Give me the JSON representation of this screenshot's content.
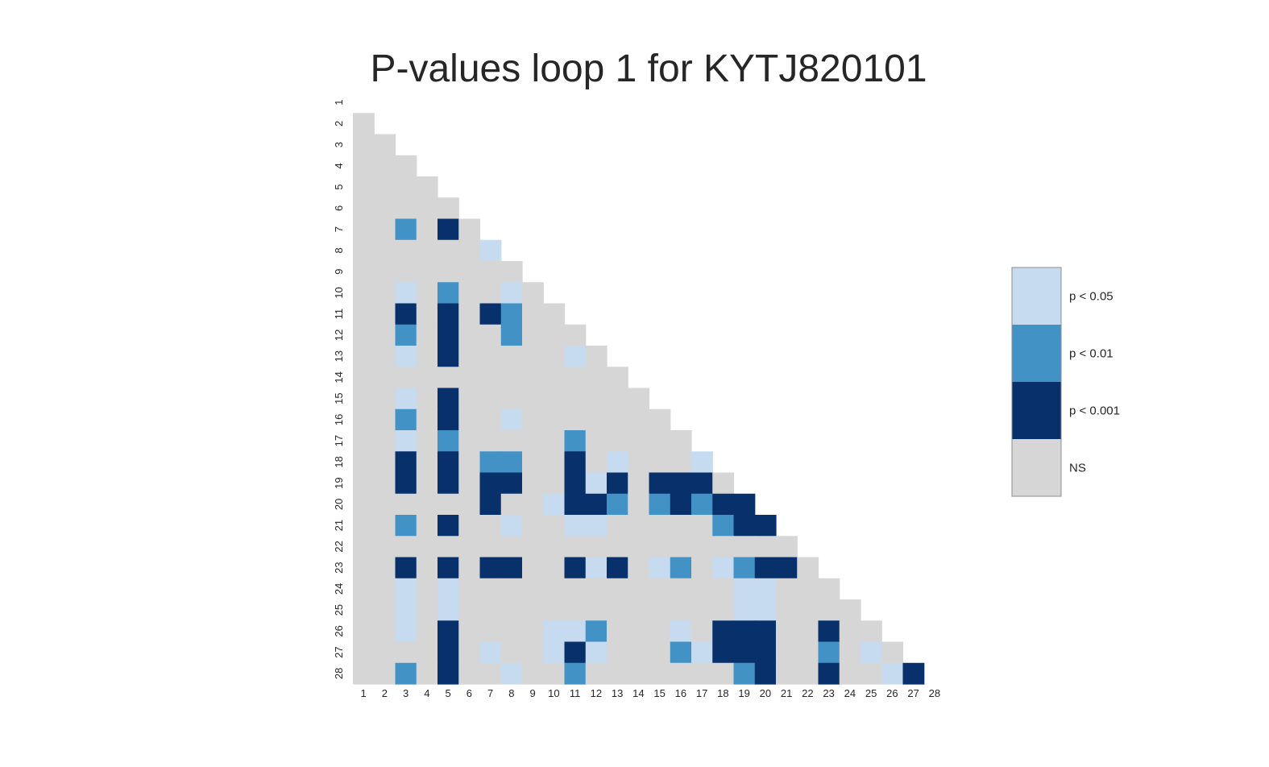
{
  "chart_data": {
    "type": "heatmap",
    "title": "P-values loop 1 for KYTJ820101",
    "xlabel": "",
    "ylabel": "",
    "x_tick_labels": [
      "1",
      "2",
      "3",
      "4",
      "5",
      "6",
      "7",
      "8",
      "9",
      "10",
      "11",
      "12",
      "13",
      "14",
      "15",
      "16",
      "17",
      "18",
      "19",
      "20",
      "21",
      "22",
      "23",
      "24",
      "25",
      "26",
      "27",
      "28"
    ],
    "y_tick_labels": [
      "1",
      "2",
      "3",
      "4",
      "5",
      "6",
      "7",
      "8",
      "9",
      "10",
      "11",
      "12",
      "13",
      "14",
      "15",
      "16",
      "17",
      "18",
      "19",
      "20",
      "21",
      "22",
      "23",
      "24",
      "25",
      "26",
      "27",
      "28"
    ],
    "mask": "upper triangle including diagonal",
    "levels": [
      {
        "code": 1,
        "label": "p < 0.05",
        "color": "#c6dbef"
      },
      {
        "code": 2,
        "label": "p < 0.01",
        "color": "#4292c6"
      },
      {
        "code": 3,
        "label": "p < 0.001",
        "color": "#08306b"
      },
      {
        "code": 0,
        "label": "NS",
        "color": "#d6d6d6"
      }
    ],
    "legend_position": "right",
    "grid": false,
    "significant_cells": [
      {
        "row": 7,
        "col": 3,
        "level": 2
      },
      {
        "row": 7,
        "col": 5,
        "level": 3
      },
      {
        "row": 8,
        "col": 7,
        "level": 1
      },
      {
        "row": 10,
        "col": 3,
        "level": 1
      },
      {
        "row": 10,
        "col": 5,
        "level": 2
      },
      {
        "row": 10,
        "col": 8,
        "level": 1
      },
      {
        "row": 11,
        "col": 3,
        "level": 3
      },
      {
        "row": 11,
        "col": 5,
        "level": 3
      },
      {
        "row": 11,
        "col": 7,
        "level": 3
      },
      {
        "row": 11,
        "col": 8,
        "level": 2
      },
      {
        "row": 12,
        "col": 3,
        "level": 2
      },
      {
        "row": 12,
        "col": 5,
        "level": 3
      },
      {
        "row": 12,
        "col": 8,
        "level": 2
      },
      {
        "row": 13,
        "col": 3,
        "level": 1
      },
      {
        "row": 13,
        "col": 5,
        "level": 3
      },
      {
        "row": 13,
        "col": 11,
        "level": 1
      },
      {
        "row": 15,
        "col": 3,
        "level": 1
      },
      {
        "row": 15,
        "col": 5,
        "level": 3
      },
      {
        "row": 16,
        "col": 3,
        "level": 2
      },
      {
        "row": 16,
        "col": 5,
        "level": 3
      },
      {
        "row": 16,
        "col": 8,
        "level": 1
      },
      {
        "row": 17,
        "col": 3,
        "level": 1
      },
      {
        "row": 17,
        "col": 5,
        "level": 2
      },
      {
        "row": 17,
        "col": 11,
        "level": 2
      },
      {
        "row": 18,
        "col": 3,
        "level": 3
      },
      {
        "row": 18,
        "col": 5,
        "level": 3
      },
      {
        "row": 18,
        "col": 7,
        "level": 2
      },
      {
        "row": 18,
        "col": 8,
        "level": 2
      },
      {
        "row": 18,
        "col": 11,
        "level": 3
      },
      {
        "row": 18,
        "col": 13,
        "level": 1
      },
      {
        "row": 18,
        "col": 17,
        "level": 1
      },
      {
        "row": 19,
        "col": 3,
        "level": 3
      },
      {
        "row": 19,
        "col": 5,
        "level": 3
      },
      {
        "row": 19,
        "col": 7,
        "level": 3
      },
      {
        "row": 19,
        "col": 8,
        "level": 3
      },
      {
        "row": 19,
        "col": 11,
        "level": 3
      },
      {
        "row": 19,
        "col": 12,
        "level": 1
      },
      {
        "row": 19,
        "col": 13,
        "level": 3
      },
      {
        "row": 19,
        "col": 15,
        "level": 3
      },
      {
        "row": 19,
        "col": 16,
        "level": 3
      },
      {
        "row": 19,
        "col": 17,
        "level": 3
      },
      {
        "row": 20,
        "col": 7,
        "level": 3
      },
      {
        "row": 20,
        "col": 10,
        "level": 1
      },
      {
        "row": 20,
        "col": 11,
        "level": 3
      },
      {
        "row": 20,
        "col": 12,
        "level": 3
      },
      {
        "row": 20,
        "col": 13,
        "level": 2
      },
      {
        "row": 20,
        "col": 15,
        "level": 2
      },
      {
        "row": 20,
        "col": 16,
        "level": 3
      },
      {
        "row": 20,
        "col": 17,
        "level": 2
      },
      {
        "row": 20,
        "col": 18,
        "level": 3
      },
      {
        "row": 20,
        "col": 19,
        "level": 3
      },
      {
        "row": 21,
        "col": 3,
        "level": 2
      },
      {
        "row": 21,
        "col": 5,
        "level": 3
      },
      {
        "row": 21,
        "col": 8,
        "level": 1
      },
      {
        "row": 21,
        "col": 11,
        "level": 1
      },
      {
        "row": 21,
        "col": 12,
        "level": 1
      },
      {
        "row": 21,
        "col": 18,
        "level": 2
      },
      {
        "row": 21,
        "col": 19,
        "level": 3
      },
      {
        "row": 21,
        "col": 20,
        "level": 3
      },
      {
        "row": 23,
        "col": 3,
        "level": 3
      },
      {
        "row": 23,
        "col": 5,
        "level": 3
      },
      {
        "row": 23,
        "col": 7,
        "level": 3
      },
      {
        "row": 23,
        "col": 8,
        "level": 3
      },
      {
        "row": 23,
        "col": 11,
        "level": 3
      },
      {
        "row": 23,
        "col": 12,
        "level": 1
      },
      {
        "row": 23,
        "col": 13,
        "level": 3
      },
      {
        "row": 23,
        "col": 15,
        "level": 1
      },
      {
        "row": 23,
        "col": 16,
        "level": 2
      },
      {
        "row": 23,
        "col": 18,
        "level": 1
      },
      {
        "row": 23,
        "col": 19,
        "level": 2
      },
      {
        "row": 23,
        "col": 20,
        "level": 3
      },
      {
        "row": 23,
        "col": 21,
        "level": 3
      },
      {
        "row": 24,
        "col": 3,
        "level": 1
      },
      {
        "row": 24,
        "col": 5,
        "level": 1
      },
      {
        "row": 24,
        "col": 19,
        "level": 1
      },
      {
        "row": 24,
        "col": 20,
        "level": 1
      },
      {
        "row": 25,
        "col": 3,
        "level": 1
      },
      {
        "row": 25,
        "col": 5,
        "level": 1
      },
      {
        "row": 25,
        "col": 19,
        "level": 1
      },
      {
        "row": 25,
        "col": 20,
        "level": 1
      },
      {
        "row": 26,
        "col": 3,
        "level": 1
      },
      {
        "row": 26,
        "col": 5,
        "level": 3
      },
      {
        "row": 26,
        "col": 10,
        "level": 1
      },
      {
        "row": 26,
        "col": 11,
        "level": 1
      },
      {
        "row": 26,
        "col": 12,
        "level": 2
      },
      {
        "row": 26,
        "col": 16,
        "level": 1
      },
      {
        "row": 26,
        "col": 18,
        "level": 3
      },
      {
        "row": 26,
        "col": 19,
        "level": 3
      },
      {
        "row": 26,
        "col": 20,
        "level": 3
      },
      {
        "row": 26,
        "col": 23,
        "level": 3
      },
      {
        "row": 27,
        "col": 5,
        "level": 3
      },
      {
        "row": 27,
        "col": 7,
        "level": 1
      },
      {
        "row": 27,
        "col": 10,
        "level": 1
      },
      {
        "row": 27,
        "col": 11,
        "level": 3
      },
      {
        "row": 27,
        "col": 12,
        "level": 1
      },
      {
        "row": 27,
        "col": 16,
        "level": 2
      },
      {
        "row": 27,
        "col": 17,
        "level": 1
      },
      {
        "row": 27,
        "col": 18,
        "level": 3
      },
      {
        "row": 27,
        "col": 19,
        "level": 3
      },
      {
        "row": 27,
        "col": 20,
        "level": 3
      },
      {
        "row": 27,
        "col": 23,
        "level": 2
      },
      {
        "row": 27,
        "col": 25,
        "level": 1
      },
      {
        "row": 28,
        "col": 3,
        "level": 2
      },
      {
        "row": 28,
        "col": 5,
        "level": 3
      },
      {
        "row": 28,
        "col": 8,
        "level": 1
      },
      {
        "row": 28,
        "col": 11,
        "level": 2
      },
      {
        "row": 28,
        "col": 19,
        "level": 2
      },
      {
        "row": 28,
        "col": 20,
        "level": 3
      },
      {
        "row": 28,
        "col": 23,
        "level": 3
      },
      {
        "row": 28,
        "col": 26,
        "level": 1
      },
      {
        "row": 28,
        "col": 27,
        "level": 3
      }
    ]
  }
}
